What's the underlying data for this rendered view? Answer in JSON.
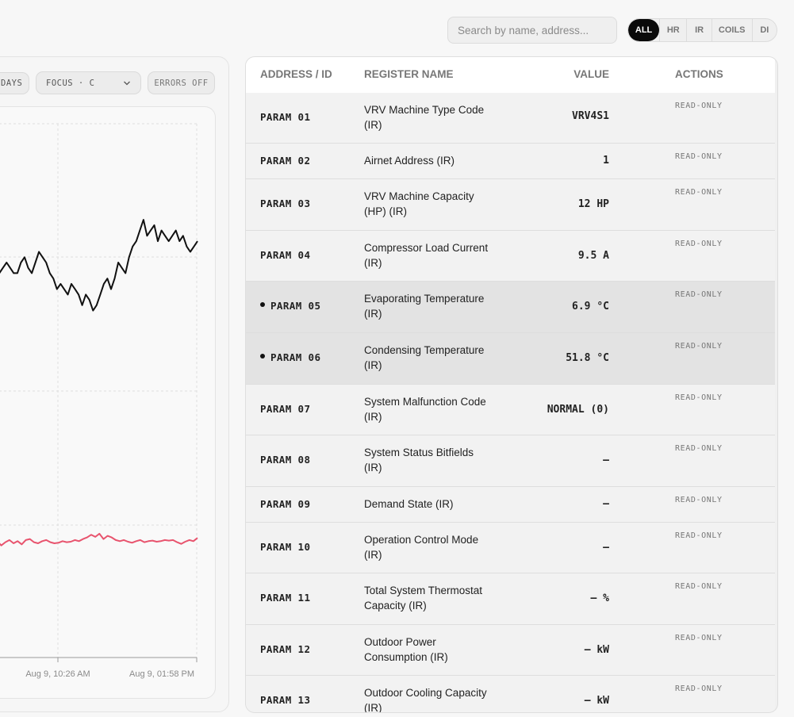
{
  "search": {
    "placeholder": "Search by name, address..."
  },
  "filter": {
    "options": [
      "ALL",
      "HR",
      "IR",
      "COILS",
      "DI"
    ],
    "active": "ALL"
  },
  "chart_controls": {
    "range_label": "DAYS",
    "focus_label": "FOCUS · C",
    "errors_label": "ERRORS OFF"
  },
  "chart_data": {
    "type": "line",
    "x_tick_labels": [
      "Aug 9, 10:26 AM",
      "Aug 9, 01:58 PM"
    ],
    "series": [
      {
        "color": "#111111",
        "values": [
          0.7,
          0.71,
          0.72,
          0.71,
          0.72,
          0.73,
          0.74,
          0.73,
          0.72,
          0.72,
          0.74,
          0.75,
          0.73,
          0.72,
          0.74,
          0.76,
          0.75,
          0.74,
          0.72,
          0.71,
          0.69,
          0.7,
          0.69,
          0.68,
          0.7,
          0.69,
          0.68,
          0.66,
          0.68,
          0.67,
          0.65,
          0.66,
          0.68,
          0.7,
          0.71,
          0.69,
          0.71,
          0.74,
          0.73,
          0.72,
          0.75,
          0.77,
          0.78,
          0.8,
          0.82,
          0.79,
          0.8,
          0.81,
          0.78,
          0.8,
          0.79,
          0.78,
          0.79,
          0.8,
          0.78,
          0.79,
          0.77,
          0.76,
          0.77,
          0.78
        ]
      },
      {
        "color": "#e8546e",
        "values": [
          0.22,
          0.215,
          0.22,
          0.218,
          0.21,
          0.216,
          0.22,
          0.214,
          0.218,
          0.212,
          0.22,
          0.222,
          0.216,
          0.214,
          0.218,
          0.22,
          0.216,
          0.214,
          0.215,
          0.218,
          0.216,
          0.217,
          0.22,
          0.218,
          0.222,
          0.225,
          0.23,
          0.226,
          0.232,
          0.222,
          0.228,
          0.225,
          0.22,
          0.218,
          0.22,
          0.217,
          0.215,
          0.218,
          0.22,
          0.216,
          0.218,
          0.219,
          0.217,
          0.218,
          0.22,
          0.219,
          0.22,
          0.216,
          0.213,
          0.217,
          0.22,
          0.218,
          0.224
        ]
      }
    ]
  },
  "table": {
    "headers": {
      "address": "ADDRESS / ID",
      "name": "REGISTER NAME",
      "value": "VALUE",
      "actions": "ACTIONS"
    },
    "rows": [
      {
        "address": "PARAM 01",
        "name_lines": [
          "VRV Machine Type Code",
          "(IR)"
        ],
        "value": "VRV4S1",
        "action": "READ-ONLY"
      },
      {
        "address": "PARAM 02",
        "name_lines": [
          "Airnet Address (IR)"
        ],
        "value": "1",
        "action": "READ-ONLY"
      },
      {
        "address": "PARAM 03",
        "name_lines": [
          "VRV Machine Capacity",
          "(HP) (IR)"
        ],
        "value": "12 HP",
        "action": "READ-ONLY"
      },
      {
        "address": "PARAM 04",
        "name_lines": [
          "Compressor Load Current",
          "(IR)"
        ],
        "value": "9.5 A",
        "action": "READ-ONLY"
      },
      {
        "address": "PARAM 05",
        "name_lines": [
          "Evaporating Temperature",
          "(IR)"
        ],
        "value": "6.9 °C",
        "action": "READ-ONLY",
        "focused": true
      },
      {
        "address": "PARAM 06",
        "name_lines": [
          "Condensing Temperature",
          "(IR)"
        ],
        "value": "51.8 °C",
        "action": "READ-ONLY",
        "focused": true
      },
      {
        "address": "PARAM 07",
        "name_lines": [
          "System Malfunction Code",
          "(IR)"
        ],
        "value": "NORMAL (0)",
        "action": "READ-ONLY"
      },
      {
        "address": "PARAM 08",
        "name_lines": [
          "System Status Bitfields",
          "(IR)"
        ],
        "value": "—",
        "action": "READ-ONLY"
      },
      {
        "address": "PARAM 09",
        "name_lines": [
          "Demand State (IR)"
        ],
        "value": "—",
        "action": "READ-ONLY"
      },
      {
        "address": "PARAM 10",
        "name_lines": [
          "Operation Control Mode",
          "(IR)"
        ],
        "value": "—",
        "action": "READ-ONLY"
      },
      {
        "address": "PARAM 11",
        "name_lines": [
          "Total System Thermostat",
          "Capacity (IR)"
        ],
        "value": "— %",
        "action": "READ-ONLY"
      },
      {
        "address": "PARAM 12",
        "name_lines": [
          "Outdoor Power",
          "Consumption (IR)"
        ],
        "value": "— kW",
        "action": "READ-ONLY"
      },
      {
        "address": "PARAM 13",
        "name_lines": [
          "Outdoor Cooling Capacity",
          "(IR)"
        ],
        "value": "— kW",
        "action": "READ-ONLY"
      }
    ]
  }
}
